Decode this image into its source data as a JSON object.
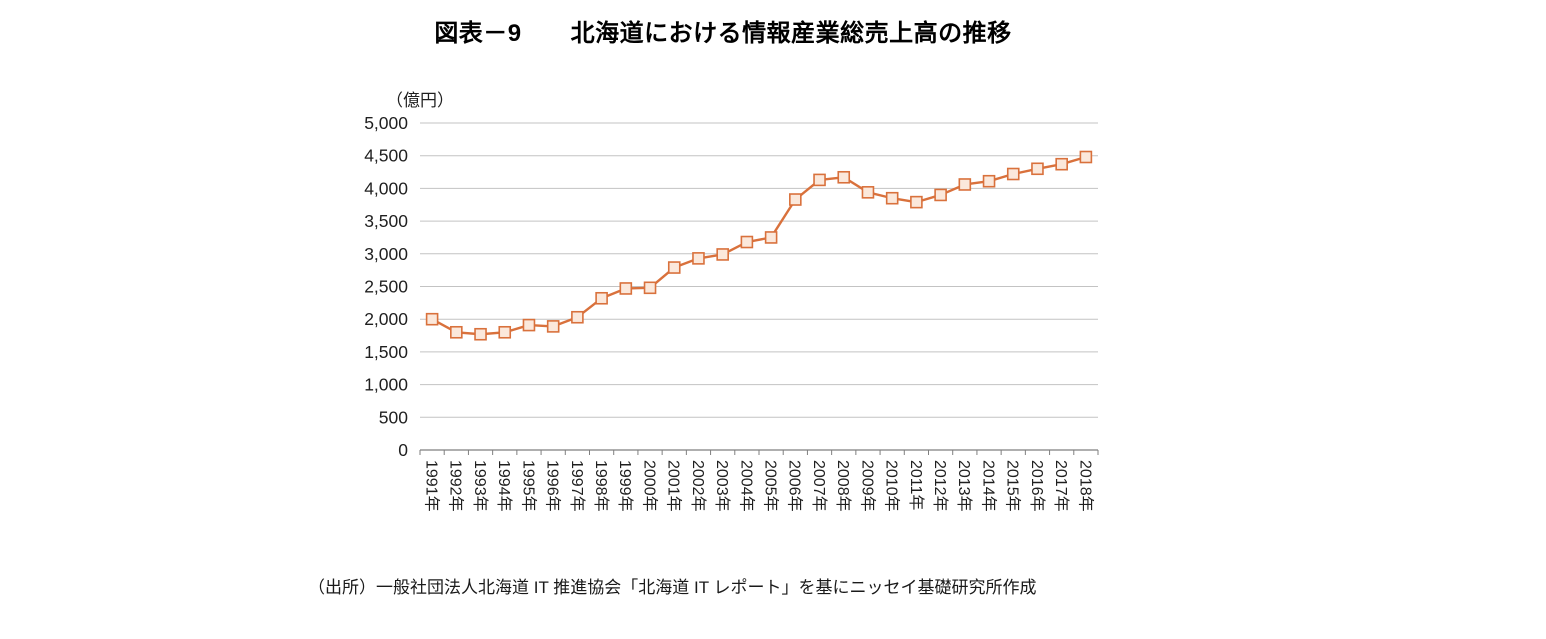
{
  "chart_data": {
    "type": "line",
    "title": "図表－9　　北海道における情報産業総売上高の推移",
    "ylabel": "（億円）",
    "xlabel": "",
    "categories": [
      "1991年",
      "1992年",
      "1993年",
      "1994年",
      "1995年",
      "1996年",
      "1997年",
      "1998年",
      "1999年",
      "2000年",
      "2001年",
      "2002年",
      "2003年",
      "2004年",
      "2005年",
      "2006年",
      "2007年",
      "2008年",
      "2009年",
      "2010年",
      "2011年",
      "2012年",
      "2013年",
      "2014年",
      "2015年",
      "2016年",
      "2017年",
      "2018年"
    ],
    "values": [
      2000,
      1800,
      1770,
      1800,
      1910,
      1890,
      2030,
      2320,
      2470,
      2480,
      2790,
      2930,
      2990,
      3180,
      3250,
      3830,
      4130,
      4170,
      3940,
      3850,
      3790,
      3900,
      4060,
      4110,
      4220,
      4300,
      4370,
      4480
    ],
    "ylim": [
      0,
      5000
    ],
    "ytick_step": 500,
    "grid": true,
    "legend": "none",
    "marker": "square",
    "line_color": "#D9713C",
    "marker_fill": "#FBE8DB",
    "grid_color": "#C3C3C3",
    "axis_color": "#7F7F7F",
    "axis_text_color": "#1F1F1F"
  },
  "source": "（出所）一般社団法人北海道 IT 推進協会「北海道 IT レポート」を基にニッセイ基礎研究所作成"
}
